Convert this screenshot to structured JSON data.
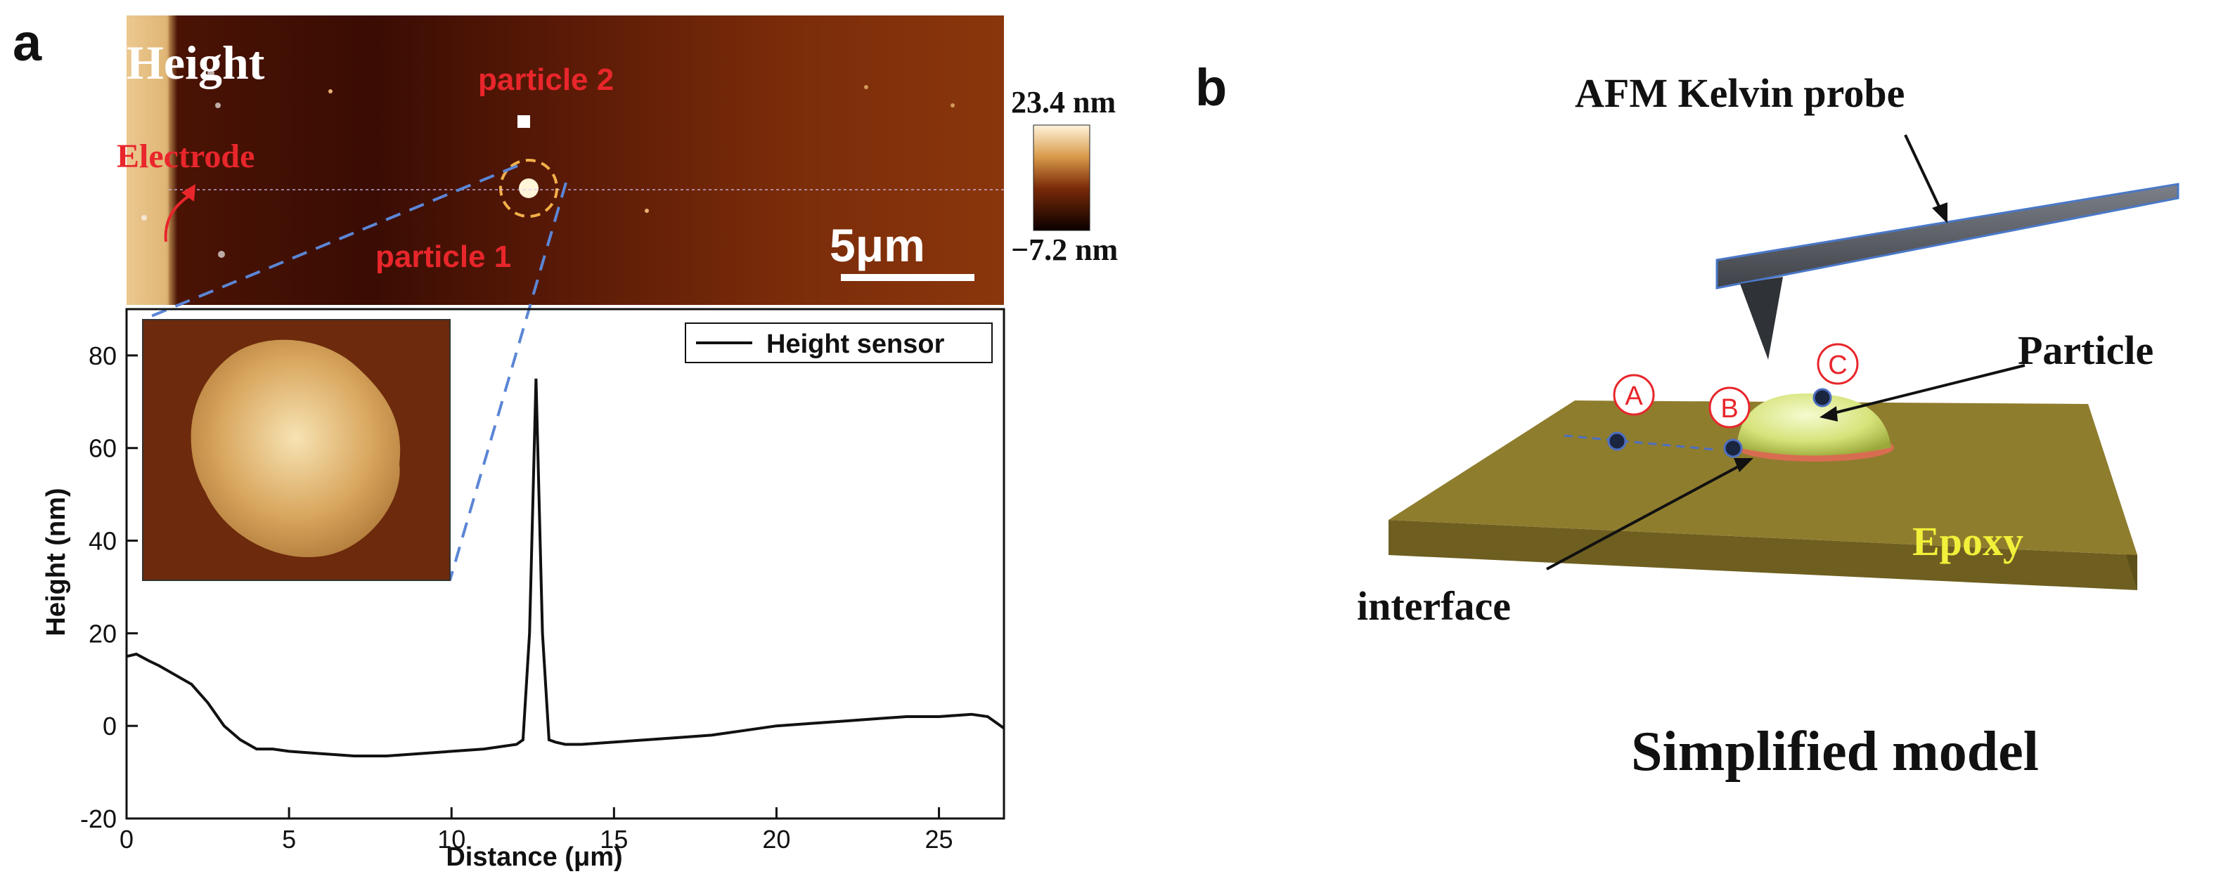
{
  "panel_a": {
    "letter": "a",
    "afm_image": {
      "mode_label": "Height",
      "particle_labels": [
        "particle 2",
        "particle 1"
      ],
      "electrode_label": "Electrode",
      "scale_bar_label": "5μm",
      "colorbar": {
        "max_label": "23.4 nm",
        "min_label": "−7.2 nm",
        "max_value": 23.4,
        "min_value": -7.2,
        "unit": "nm"
      }
    }
  },
  "chart_data": {
    "type": "line",
    "title": "",
    "xlabel": "Distance (μm)",
    "ylabel": "Height (nm)",
    "xlim": [
      0,
      27
    ],
    "ylim": [
      -20,
      90
    ],
    "xticks": [
      0,
      5,
      10,
      15,
      20,
      25
    ],
    "yticks": [
      -20,
      0,
      20,
      40,
      60,
      80
    ],
    "legend": {
      "position": "top-right",
      "entries": [
        "Height sensor"
      ]
    },
    "series": [
      {
        "name": "Height sensor",
        "x": [
          0,
          0.3,
          0.7,
          1.0,
          1.5,
          2.0,
          2.5,
          3.0,
          3.5,
          4.0,
          4.5,
          5.0,
          6.0,
          7.0,
          8.0,
          9.0,
          10.0,
          11.0,
          12.0,
          12.2,
          12.4,
          12.6,
          12.8,
          13.0,
          13.2,
          13.5,
          14.0,
          15.0,
          16.0,
          17.0,
          18.0,
          19.0,
          20.0,
          21.0,
          22.0,
          23.0,
          24.0,
          25.0,
          26.0,
          26.5,
          27.0
        ],
        "y": [
          15,
          15.5,
          14,
          13,
          11,
          9,
          5,
          0,
          -3,
          -5,
          -5,
          -5.5,
          -6,
          -6.5,
          -6.5,
          -6,
          -5.5,
          -5,
          -4,
          -3,
          20,
          75,
          20,
          -3,
          -3.5,
          -4,
          -4,
          -3.5,
          -3,
          -2.5,
          -2,
          -1,
          0,
          0.5,
          1,
          1.5,
          2,
          2,
          2.5,
          2,
          -0.5
        ]
      }
    ]
  },
  "panel_b": {
    "letter": "b",
    "probe_label": "AFM Kelvin probe",
    "particle_label": "Particle",
    "substrate_label": "Epoxy",
    "interface_label": "interface",
    "point_labels": [
      "A",
      "B",
      "C"
    ],
    "caption": "Simplified model",
    "colors": {
      "substrate": "#8f7d2e",
      "particle": "#d6e37a",
      "probe": "#5e6168",
      "marker": "#e8262b",
      "afm_dark": "#3a0b02",
      "afm_bright": "#f3d9a7"
    }
  }
}
